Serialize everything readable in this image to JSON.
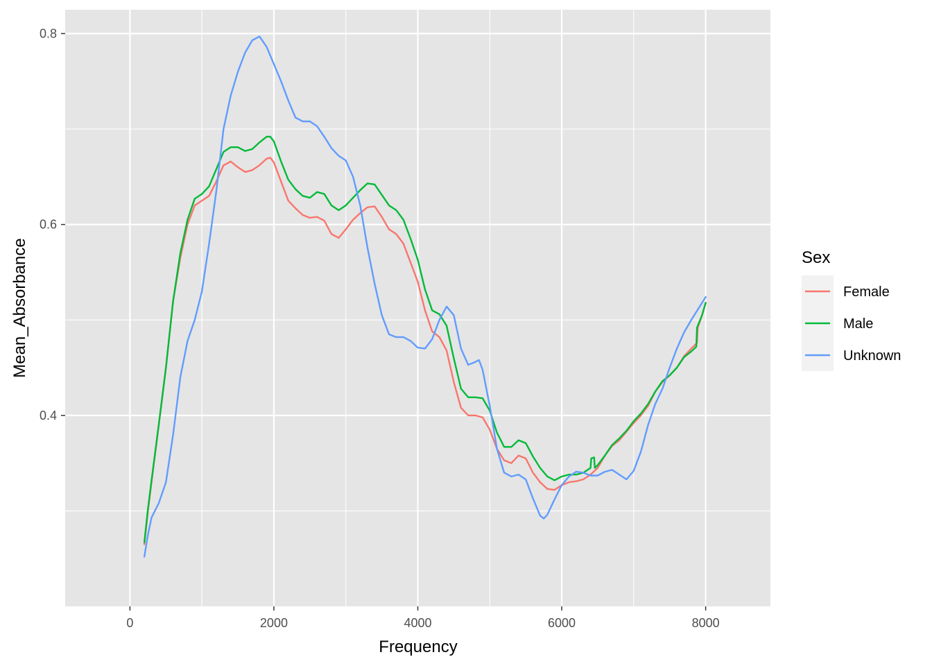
{
  "chart_data": {
    "type": "line",
    "title": "",
    "xlabel": "Frequency",
    "ylabel": "Mean_Absorbance",
    "xlim": [
      -900,
      8900
    ],
    "ylim": [
      0.2,
      0.825
    ],
    "x_ticks": [
      0,
      2000,
      4000,
      6000,
      8000
    ],
    "x_tick_labels": [
      "0",
      "2000",
      "4000",
      "6000",
      "8000"
    ],
    "x_minor_ticks": [
      1000,
      3000,
      5000,
      7000
    ],
    "y_ticks": [
      0.4,
      0.6,
      0.8
    ],
    "y_tick_labels": [
      "0.4",
      "0.6",
      "0.8"
    ],
    "y_minor_ticks": [
      0.3,
      0.5,
      0.7
    ],
    "grid": true,
    "background": "#e5e5e5",
    "legend": {
      "title": "Sex",
      "position": "right"
    },
    "series": [
      {
        "name": "Female",
        "color": "#f8766d",
        "points": [
          [
            200,
            0.265
          ],
          [
            250,
            0.3
          ],
          [
            300,
            0.33
          ],
          [
            400,
            0.39
          ],
          [
            500,
            0.45
          ],
          [
            600,
            0.52
          ],
          [
            700,
            0.565
          ],
          [
            800,
            0.6
          ],
          [
            900,
            0.62
          ],
          [
            1000,
            0.625
          ],
          [
            1100,
            0.63
          ],
          [
            1200,
            0.645
          ],
          [
            1300,
            0.662
          ],
          [
            1400,
            0.666
          ],
          [
            1500,
            0.66
          ],
          [
            1600,
            0.655
          ],
          [
            1700,
            0.657
          ],
          [
            1800,
            0.662
          ],
          [
            1900,
            0.669
          ],
          [
            1950,
            0.67
          ],
          [
            2000,
            0.665
          ],
          [
            2100,
            0.645
          ],
          [
            2200,
            0.625
          ],
          [
            2300,
            0.617
          ],
          [
            2400,
            0.61
          ],
          [
            2500,
            0.607
          ],
          [
            2600,
            0.608
          ],
          [
            2700,
            0.604
          ],
          [
            2800,
            0.59
          ],
          [
            2900,
            0.586
          ],
          [
            3000,
            0.595
          ],
          [
            3100,
            0.605
          ],
          [
            3200,
            0.612
          ],
          [
            3300,
            0.618
          ],
          [
            3400,
            0.619
          ],
          [
            3500,
            0.608
          ],
          [
            3600,
            0.595
          ],
          [
            3700,
            0.59
          ],
          [
            3800,
            0.58
          ],
          [
            3900,
            0.56
          ],
          [
            4000,
            0.54
          ],
          [
            4100,
            0.51
          ],
          [
            4200,
            0.488
          ],
          [
            4300,
            0.482
          ],
          [
            4400,
            0.468
          ],
          [
            4500,
            0.435
          ],
          [
            4600,
            0.408
          ],
          [
            4700,
            0.4
          ],
          [
            4800,
            0.4
          ],
          [
            4900,
            0.398
          ],
          [
            5000,
            0.385
          ],
          [
            5100,
            0.365
          ],
          [
            5200,
            0.353
          ],
          [
            5300,
            0.35
          ],
          [
            5400,
            0.358
          ],
          [
            5500,
            0.355
          ],
          [
            5600,
            0.34
          ],
          [
            5700,
            0.33
          ],
          [
            5800,
            0.323
          ],
          [
            5900,
            0.322
          ],
          [
            6000,
            0.327
          ],
          [
            6100,
            0.33
          ],
          [
            6200,
            0.331
          ],
          [
            6300,
            0.333
          ],
          [
            6400,
            0.338
          ],
          [
            6500,
            0.345
          ],
          [
            6600,
            0.358
          ],
          [
            6700,
            0.368
          ],
          [
            6800,
            0.374
          ],
          [
            6900,
            0.383
          ],
          [
            7000,
            0.392
          ],
          [
            7100,
            0.4
          ],
          [
            7200,
            0.41
          ],
          [
            7300,
            0.425
          ],
          [
            7400,
            0.435
          ],
          [
            7500,
            0.442
          ],
          [
            7600,
            0.45
          ],
          [
            7700,
            0.462
          ],
          [
            7800,
            0.47
          ],
          [
            7880,
            0.476
          ],
          [
            7890,
            0.492
          ],
          [
            7950,
            0.505
          ],
          [
            8000,
            0.518
          ]
        ]
      },
      {
        "name": "Male",
        "color": "#00ba38",
        "points": [
          [
            200,
            0.267
          ],
          [
            250,
            0.302
          ],
          [
            300,
            0.332
          ],
          [
            400,
            0.39
          ],
          [
            500,
            0.45
          ],
          [
            600,
            0.52
          ],
          [
            700,
            0.57
          ],
          [
            800,
            0.605
          ],
          [
            900,
            0.627
          ],
          [
            1000,
            0.632
          ],
          [
            1100,
            0.64
          ],
          [
            1200,
            0.658
          ],
          [
            1300,
            0.676
          ],
          [
            1400,
            0.681
          ],
          [
            1500,
            0.681
          ],
          [
            1600,
            0.677
          ],
          [
            1700,
            0.679
          ],
          [
            1800,
            0.686
          ],
          [
            1900,
            0.692
          ],
          [
            1950,
            0.692
          ],
          [
            2000,
            0.687
          ],
          [
            2100,
            0.666
          ],
          [
            2200,
            0.647
          ],
          [
            2300,
            0.637
          ],
          [
            2400,
            0.63
          ],
          [
            2500,
            0.628
          ],
          [
            2600,
            0.634
          ],
          [
            2700,
            0.632
          ],
          [
            2800,
            0.62
          ],
          [
            2900,
            0.615
          ],
          [
            3000,
            0.62
          ],
          [
            3100,
            0.628
          ],
          [
            3200,
            0.636
          ],
          [
            3300,
            0.643
          ],
          [
            3400,
            0.642
          ],
          [
            3500,
            0.631
          ],
          [
            3600,
            0.62
          ],
          [
            3700,
            0.615
          ],
          [
            3800,
            0.605
          ],
          [
            3900,
            0.585
          ],
          [
            4000,
            0.563
          ],
          [
            4100,
            0.532
          ],
          [
            4200,
            0.51
          ],
          [
            4300,
            0.506
          ],
          [
            4400,
            0.494
          ],
          [
            4500,
            0.46
          ],
          [
            4600,
            0.428
          ],
          [
            4700,
            0.419
          ],
          [
            4800,
            0.419
          ],
          [
            4900,
            0.418
          ],
          [
            5000,
            0.405
          ],
          [
            5100,
            0.382
          ],
          [
            5200,
            0.367
          ],
          [
            5300,
            0.367
          ],
          [
            5400,
            0.374
          ],
          [
            5500,
            0.371
          ],
          [
            5600,
            0.357
          ],
          [
            5700,
            0.345
          ],
          [
            5800,
            0.336
          ],
          [
            5900,
            0.332
          ],
          [
            6000,
            0.336
          ],
          [
            6100,
            0.338
          ],
          [
            6200,
            0.338
          ],
          [
            6300,
            0.34
          ],
          [
            6400,
            0.345
          ],
          [
            6410,
            0.355
          ],
          [
            6450,
            0.356
          ],
          [
            6460,
            0.345
          ],
          [
            6500,
            0.348
          ],
          [
            6600,
            0.358
          ],
          [
            6700,
            0.369
          ],
          [
            6800,
            0.376
          ],
          [
            6900,
            0.384
          ],
          [
            7000,
            0.394
          ],
          [
            7100,
            0.402
          ],
          [
            7200,
            0.412
          ],
          [
            7300,
            0.425
          ],
          [
            7400,
            0.436
          ],
          [
            7500,
            0.442
          ],
          [
            7600,
            0.45
          ],
          [
            7700,
            0.461
          ],
          [
            7800,
            0.467
          ],
          [
            7870,
            0.472
          ],
          [
            7880,
            0.492
          ],
          [
            7950,
            0.505
          ],
          [
            8000,
            0.518
          ]
        ]
      },
      {
        "name": "Unknown",
        "color": "#619cff",
        "points": [
          [
            200,
            0.252
          ],
          [
            250,
            0.275
          ],
          [
            300,
            0.293
          ],
          [
            400,
            0.308
          ],
          [
            500,
            0.33
          ],
          [
            600,
            0.38
          ],
          [
            700,
            0.44
          ],
          [
            800,
            0.478
          ],
          [
            900,
            0.5
          ],
          [
            1000,
            0.53
          ],
          [
            1100,
            0.58
          ],
          [
            1200,
            0.635
          ],
          [
            1300,
            0.7
          ],
          [
            1400,
            0.735
          ],
          [
            1500,
            0.76
          ],
          [
            1600,
            0.78
          ],
          [
            1700,
            0.793
          ],
          [
            1800,
            0.797
          ],
          [
            1900,
            0.786
          ],
          [
            2000,
            0.768
          ],
          [
            2100,
            0.75
          ],
          [
            2200,
            0.73
          ],
          [
            2300,
            0.712
          ],
          [
            2400,
            0.708
          ],
          [
            2500,
            0.708
          ],
          [
            2600,
            0.703
          ],
          [
            2700,
            0.692
          ],
          [
            2800,
            0.68
          ],
          [
            2900,
            0.672
          ],
          [
            3000,
            0.667
          ],
          [
            3100,
            0.65
          ],
          [
            3200,
            0.62
          ],
          [
            3300,
            0.576
          ],
          [
            3400,
            0.538
          ],
          [
            3500,
            0.505
          ],
          [
            3600,
            0.485
          ],
          [
            3700,
            0.482
          ],
          [
            3800,
            0.482
          ],
          [
            3900,
            0.478
          ],
          [
            4000,
            0.471
          ],
          [
            4100,
            0.47
          ],
          [
            4200,
            0.48
          ],
          [
            4300,
            0.5
          ],
          [
            4400,
            0.514
          ],
          [
            4500,
            0.505
          ],
          [
            4600,
            0.47
          ],
          [
            4700,
            0.453
          ],
          [
            4800,
            0.456
          ],
          [
            4850,
            0.458
          ],
          [
            4900,
            0.448
          ],
          [
            5000,
            0.41
          ],
          [
            5100,
            0.365
          ],
          [
            5200,
            0.34
          ],
          [
            5300,
            0.336
          ],
          [
            5400,
            0.338
          ],
          [
            5500,
            0.333
          ],
          [
            5600,
            0.313
          ],
          [
            5700,
            0.295
          ],
          [
            5750,
            0.292
          ],
          [
            5800,
            0.296
          ],
          [
            5900,
            0.312
          ],
          [
            6000,
            0.327
          ],
          [
            6100,
            0.336
          ],
          [
            6200,
            0.341
          ],
          [
            6300,
            0.34
          ],
          [
            6400,
            0.337
          ],
          [
            6500,
            0.337
          ],
          [
            6600,
            0.341
          ],
          [
            6700,
            0.343
          ],
          [
            6800,
            0.338
          ],
          [
            6900,
            0.333
          ],
          [
            7000,
            0.342
          ],
          [
            7100,
            0.362
          ],
          [
            7200,
            0.39
          ],
          [
            7300,
            0.412
          ],
          [
            7400,
            0.428
          ],
          [
            7500,
            0.45
          ],
          [
            7600,
            0.47
          ],
          [
            7700,
            0.487
          ],
          [
            7800,
            0.5
          ],
          [
            7900,
            0.512
          ],
          [
            8000,
            0.524
          ]
        ]
      }
    ]
  }
}
